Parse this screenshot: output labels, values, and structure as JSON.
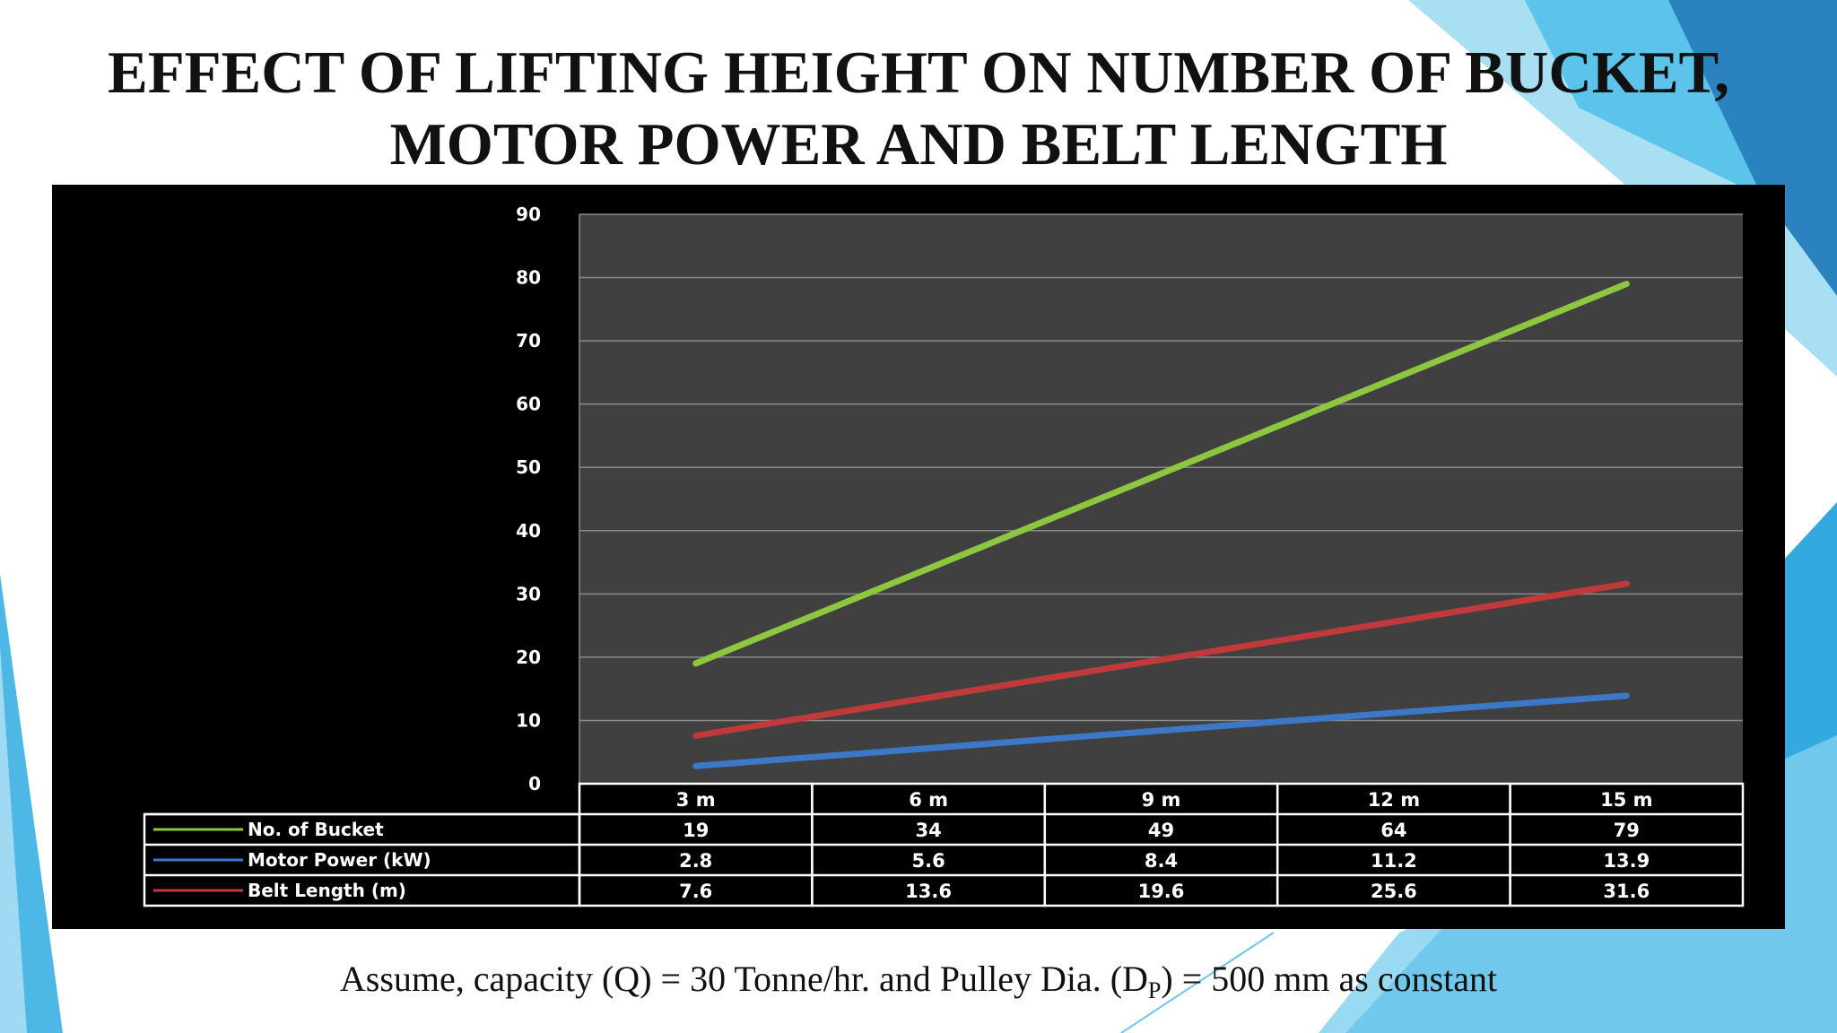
{
  "slide": {
    "title_line1": "EFFECT OF LIFTING HEIGHT ON NUMBER OF BUCKET,",
    "title_line2": "MOTOR POWER AND BELT LENGTH",
    "footnote_before": "Assume, capacity (Q) = 30  Tonne/hr.  and Pulley Dia. (D",
    "footnote_sub": "P",
    "footnote_after": ") = 500 mm as constant"
  },
  "colors": {
    "accent_blue": "#1ea1d9",
    "light_blue": "#7fd0ef",
    "pale_blue": "#b9e6f7",
    "plot_bg": "#404040",
    "frame_bg": "#000000"
  },
  "chart_data": {
    "type": "line",
    "title": "",
    "xlabel": "",
    "ylabel": "",
    "categories": [
      "3 m",
      "6 m",
      "9 m",
      "12 m",
      "15 m"
    ],
    "ylim": [
      0,
      90
    ],
    "yticks": [
      0,
      10,
      20,
      30,
      40,
      50,
      60,
      70,
      80,
      90
    ],
    "grid": true,
    "series": [
      {
        "name": "No. of Bucket",
        "color": "#8dc63f",
        "values": [
          19,
          34,
          49,
          64,
          79
        ],
        "labels": [
          "19",
          "34",
          "49",
          "64",
          "79"
        ]
      },
      {
        "name": "Motor Power (kW)",
        "color": "#3b78c8",
        "values": [
          2.8,
          5.6,
          8.4,
          11.2,
          13.9
        ],
        "labels": [
          "2.8",
          "5.6",
          "8.4",
          "11.2",
          "13.9"
        ]
      },
      {
        "name": "Belt Length (m)",
        "color": "#c0393b",
        "values": [
          7.6,
          13.6,
          19.6,
          25.6,
          31.6
        ],
        "labels": [
          "7.6",
          "13.6",
          "19.6",
          "25.6",
          "31.6"
        ]
      }
    ],
    "data_table": true
  }
}
